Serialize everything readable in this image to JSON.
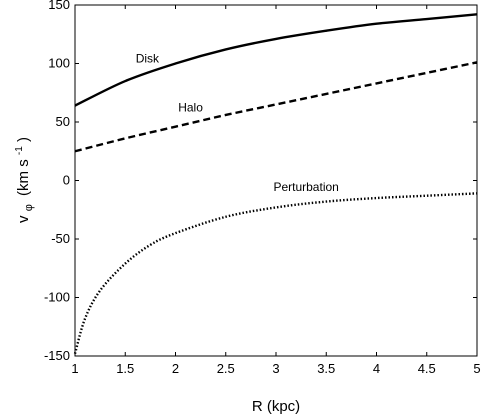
{
  "chart_data": {
    "type": "line",
    "xlabel": "R (kpc)",
    "ylabel": {
      "main": "v",
      "sub": "φ",
      "units_pre": "(km s",
      "units_sup": "-1",
      "units_post": ")"
    },
    "xlim": [
      1,
      5
    ],
    "ylim": [
      -150,
      150
    ],
    "xticks": [
      1,
      1.5,
      2,
      2.5,
      3,
      3.5,
      4,
      4.5,
      5
    ],
    "xtick_labels": [
      "1",
      "1.5",
      "2",
      "2.5",
      "3",
      "3.5",
      "4",
      "4.5",
      "5"
    ],
    "yticks": [
      -150,
      -100,
      -50,
      0,
      50,
      100,
      150
    ],
    "ytick_labels": [
      "-150",
      "-100",
      "-50",
      "0",
      "50",
      "100",
      "150"
    ],
    "grid": false,
    "series": [
      {
        "name": "Disk",
        "style": "solid",
        "x": [
          1,
          1.5,
          2,
          2.5,
          3,
          3.5,
          4,
          4.5,
          5
        ],
        "y": [
          64,
          85,
          100,
          112,
          121,
          128,
          134,
          138,
          142
        ]
      },
      {
        "name": "Halo",
        "style": "dashed",
        "x": [
          1,
          1.5,
          2,
          2.5,
          3,
          3.5,
          4,
          4.5,
          5
        ],
        "y": [
          25,
          36,
          46,
          56,
          65,
          74,
          83,
          92,
          101
        ]
      },
      {
        "name": "Perturbation",
        "style": "dotted",
        "x": [
          1,
          1.1,
          1.25,
          1.5,
          1.75,
          2,
          2.5,
          3,
          3.5,
          4,
          4.5,
          5
        ],
        "y": [
          -148,
          -118,
          -94,
          -71,
          -55,
          -45,
          -31,
          -23,
          -18,
          -15,
          -13,
          -11
        ]
      }
    ],
    "annotations": [
      {
        "text": "Disk",
        "series": 0,
        "x": 1.72,
        "y": 101
      },
      {
        "text": "Halo",
        "series": 1,
        "x": 2.15,
        "y": 59
      },
      {
        "text": "Perturbation",
        "series": 2,
        "x": 3.3,
        "y": -9
      }
    ]
  }
}
